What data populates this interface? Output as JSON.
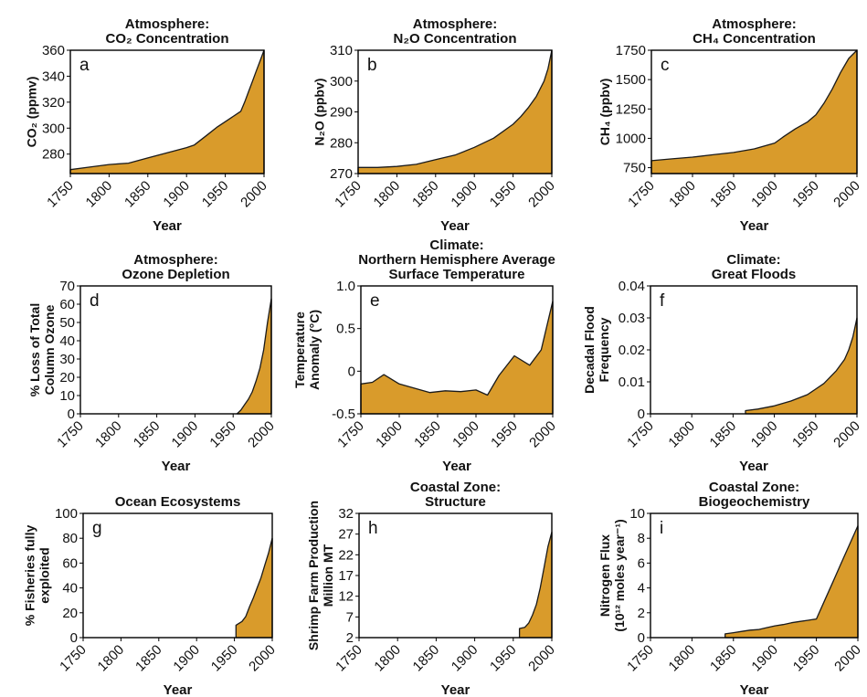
{
  "chart_data": [
    {
      "id": "a",
      "type": "area",
      "title": [
        "Atmosphere:",
        "CO₂ Concentration"
      ],
      "ylabel": "CO₂ (ppmv)",
      "xlabel": "Year",
      "xlim": [
        1750,
        2000
      ],
      "ylim": [
        265,
        360
      ],
      "xticks": [
        1750,
        1800,
        1850,
        1900,
        1950,
        2000
      ],
      "yticks": [
        280,
        300,
        320,
        340,
        360
      ],
      "ytick_labels": [
        "280",
        "300",
        "320",
        "340",
        "360"
      ],
      "color": "#d99b2b",
      "series": [
        {
          "x": [
            1750,
            1775,
            1800,
            1825,
            1850,
            1875,
            1900,
            1910,
            1925,
            1940,
            1950,
            1960,
            1970,
            1975,
            1980,
            1985,
            1990,
            1995,
            2000
          ],
          "y": [
            268,
            270,
            272,
            273,
            277,
            281,
            285,
            287,
            294,
            301,
            305,
            309,
            313,
            320,
            328,
            336,
            344,
            352,
            360
          ]
        }
      ]
    },
    {
      "id": "b",
      "type": "area",
      "title": [
        "Atmosphere:",
        "N₂O Concentration"
      ],
      "ylabel": "N₂O (ppbv)",
      "xlabel": "Year",
      "xlim": [
        1750,
        2000
      ],
      "ylim": [
        270,
        310
      ],
      "xticks": [
        1750,
        1800,
        1850,
        1900,
        1950,
        2000
      ],
      "yticks": [
        270,
        280,
        290,
        300,
        310
      ],
      "ytick_labels": [
        "270",
        "280",
        "290",
        "300",
        "310"
      ],
      "color": "#d99b2b",
      "series": [
        {
          "x": [
            1750,
            1775,
            1800,
            1825,
            1850,
            1875,
            1900,
            1925,
            1950,
            1960,
            1970,
            1980,
            1990,
            1995,
            2000
          ],
          "y": [
            272,
            272,
            272.3,
            273,
            274.5,
            276,
            278.5,
            281.5,
            286,
            288.5,
            291.5,
            295,
            300,
            304,
            310
          ]
        }
      ]
    },
    {
      "id": "c",
      "type": "area",
      "title": [
        "Atmosphere:",
        "CH₄ Concentration"
      ],
      "ylabel": "CH₄ (ppbv)",
      "xlabel": "Year",
      "xlim": [
        1750,
        2000
      ],
      "ylim": [
        700,
        1750
      ],
      "xticks": [
        1750,
        1800,
        1850,
        1900,
        1950,
        2000
      ],
      "yticks": [
        750,
        1000,
        1250,
        1500,
        1750
      ],
      "ytick_labels": [
        "750",
        "1000",
        "1250",
        "1500",
        "1750"
      ],
      "color": "#d99b2b",
      "series": [
        {
          "x": [
            1750,
            1775,
            1800,
            1825,
            1850,
            1875,
            1900,
            1910,
            1925,
            1940,
            1950,
            1960,
            1970,
            1980,
            1990,
            2000
          ],
          "y": [
            810,
            825,
            840,
            860,
            880,
            910,
            960,
            1010,
            1080,
            1140,
            1200,
            1300,
            1420,
            1560,
            1680,
            1750
          ]
        }
      ]
    },
    {
      "id": "d",
      "type": "area",
      "title": [
        "Atmosphere:",
        "Ozone Depletion"
      ],
      "ylabel": [
        "% Loss of Total",
        "Column Ozone"
      ],
      "xlabel": "Year",
      "xlim": [
        1750,
        2000
      ],
      "ylim": [
        0,
        70
      ],
      "xticks": [
        1750,
        1800,
        1850,
        1900,
        1950,
        2000
      ],
      "yticks": [
        0,
        10,
        20,
        30,
        40,
        50,
        60,
        70
      ],
      "ytick_labels": [
        "0",
        "10",
        "20",
        "30",
        "40",
        "50",
        "60",
        "70"
      ],
      "color": "#d99b2b",
      "series": [
        {
          "x": [
            1955,
            1960,
            1965,
            1970,
            1975,
            1980,
            1985,
            1990,
            1995,
            2000
          ],
          "y": [
            0,
            2,
            5,
            8,
            12,
            18,
            25,
            35,
            50,
            63
          ]
        }
      ]
    },
    {
      "id": "e",
      "type": "area",
      "title": [
        "Climate:",
        "Northern Hemisphere Average",
        "Surface Temperature"
      ],
      "ylabel": [
        "Temperature",
        "Anomaly (°C)"
      ],
      "xlabel": "Year",
      "xlim": [
        1750,
        2000
      ],
      "ylim": [
        -0.5,
        1.0
      ],
      "xticks": [
        1750,
        1800,
        1850,
        1900,
        1950,
        2000
      ],
      "yticks": [
        -0.5,
        0,
        0.5,
        1.0
      ],
      "ytick_labels": [
        "-0.5",
        "0",
        "0.5",
        "1.0"
      ],
      "color": "#d99b2b",
      "series": [
        {
          "x": [
            1750,
            1765,
            1780,
            1800,
            1820,
            1840,
            1860,
            1880,
            1900,
            1915,
            1930,
            1950,
            1970,
            1985,
            2000
          ],
          "y": [
            -0.15,
            -0.13,
            -0.04,
            -0.15,
            -0.2,
            -0.25,
            -0.23,
            -0.24,
            -0.22,
            -0.28,
            -0.05,
            0.18,
            0.07,
            0.25,
            0.82
          ]
        }
      ]
    },
    {
      "id": "f",
      "type": "area",
      "title": [
        "Climate:",
        "Great Floods"
      ],
      "ylabel": [
        "Decadal Flood",
        "Frequency"
      ],
      "xlabel": "Year",
      "xlim": [
        1750,
        2000
      ],
      "ylim": [
        0,
        0.04
      ],
      "xticks": [
        1750,
        1800,
        1850,
        1900,
        1950,
        2000
      ],
      "yticks": [
        0,
        0.01,
        0.02,
        0.03,
        0.04
      ],
      "ytick_labels": [
        "0",
        "0.01",
        "0.02",
        "0.03",
        "0.04"
      ],
      "color": "#d99b2b",
      "series": [
        {
          "x": [
            1865,
            1880,
            1900,
            1920,
            1940,
            1960,
            1975,
            1985,
            1990,
            1995,
            2000
          ],
          "y": [
            0.001,
            0.0015,
            0.0025,
            0.004,
            0.006,
            0.0095,
            0.0135,
            0.017,
            0.02,
            0.024,
            0.03
          ]
        }
      ]
    },
    {
      "id": "g",
      "type": "area",
      "title": [
        "Ocean Ecosystems"
      ],
      "ylabel": [
        "% Fisheries fully",
        "exploited"
      ],
      "xlabel": "Year",
      "xlim": [
        1750,
        2000
      ],
      "ylim": [
        0,
        100
      ],
      "xticks": [
        1750,
        1800,
        1850,
        1900,
        1950,
        2000
      ],
      "yticks": [
        0,
        20,
        40,
        60,
        80,
        100
      ],
      "ytick_labels": [
        "0",
        "20",
        "40",
        "60",
        "80",
        "100"
      ],
      "color": "#d99b2b",
      "series": [
        {
          "x": [
            1952,
            1960,
            1965,
            1970,
            1975,
            1980,
            1985,
            1990,
            1995,
            2000
          ],
          "y": [
            10,
            13,
            17,
            25,
            32,
            40,
            48,
            58,
            68,
            80
          ]
        }
      ]
    },
    {
      "id": "h",
      "type": "area",
      "title": [
        "Coastal Zone:",
        "Structure"
      ],
      "ylabel": [
        "Shrimp Farm Production",
        "Million MT"
      ],
      "xlabel": "Year",
      "xlim": [
        1750,
        2000
      ],
      "ylim": [
        2,
        32
      ],
      "xticks": [
        1750,
        1800,
        1850,
        1900,
        1950,
        2000
      ],
      "yticks": [
        2,
        7,
        12,
        17,
        22,
        27,
        32
      ],
      "ytick_labels": [
        "2",
        "7",
        "12",
        "17",
        "22",
        "27",
        "32"
      ],
      "color": "#d99b2b",
      "series": [
        {
          "x": [
            1958,
            1965,
            1970,
            1975,
            1980,
            1985,
            1990,
            1995,
            2000
          ],
          "y": [
            4.2,
            4.5,
            5.5,
            7.5,
            10,
            14,
            19,
            24,
            27.5
          ]
        }
      ]
    },
    {
      "id": "i",
      "type": "area",
      "title": [
        "Coastal Zone:",
        "Biogeochemistry"
      ],
      "ylabel": [
        "Nitrogen Flux",
        "(10¹² moles year⁻¹)"
      ],
      "xlabel": "Year",
      "xlim": [
        1750,
        2000
      ],
      "ylim": [
        0,
        10
      ],
      "xticks": [
        1750,
        1800,
        1850,
        1900,
        1950,
        2000
      ],
      "yticks": [
        0,
        2,
        4,
        6,
        8,
        10
      ],
      "ytick_labels": [
        "0",
        "2",
        "4",
        "6",
        "8",
        "10"
      ],
      "color": "#d99b2b",
      "series": [
        {
          "x": [
            1840,
            1850,
            1860,
            1870,
            1880,
            1890,
            1900,
            1910,
            1920,
            1930,
            1940,
            1950,
            1960,
            1970,
            1980,
            1990,
            2000
          ],
          "y": [
            0.3,
            0.4,
            0.5,
            0.6,
            0.65,
            0.8,
            0.95,
            1.05,
            1.2,
            1.3,
            1.4,
            1.5,
            3.0,
            4.5,
            6.0,
            7.5,
            9.0
          ]
        }
      ]
    }
  ]
}
